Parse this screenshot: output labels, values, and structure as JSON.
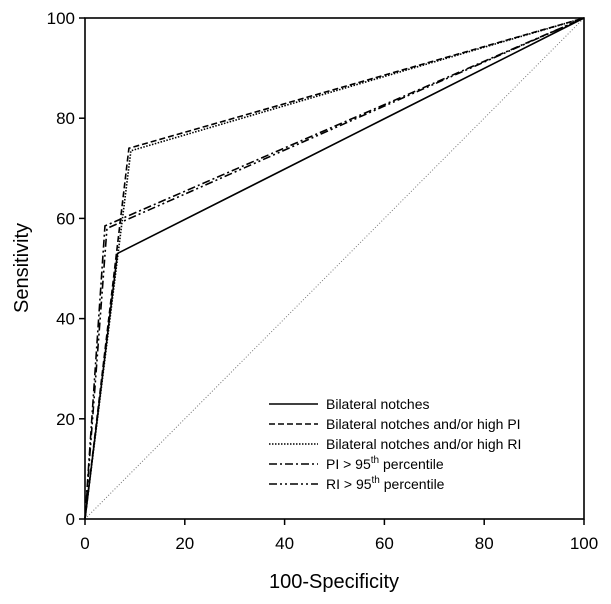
{
  "chart_data": {
    "type": "line",
    "title": "",
    "xlabel": "100-Specificity",
    "ylabel": "Sensitivity",
    "xlim": [
      0,
      100
    ],
    "ylim": [
      0,
      100
    ],
    "x_ticks": [
      "0",
      "20",
      "40",
      "60",
      "80",
      "100"
    ],
    "y_ticks": [
      "0",
      "20",
      "40",
      "60",
      "80",
      "100"
    ],
    "grid": false,
    "legend_position": "bottom-right",
    "reference_line": {
      "x": [
        0,
        100
      ],
      "y": [
        0,
        100
      ],
      "style": "dotted"
    },
    "series": [
      {
        "name": "Bilateral notches",
        "style": "solid",
        "x": [
          0,
          6.5,
          100
        ],
        "y": [
          0,
          53,
          100
        ]
      },
      {
        "name": "Bilateral notches and/or high PI",
        "name_parts": [
          "Bilateral notches and/or high PI"
        ],
        "style": "dashed",
        "x": [
          0,
          8.8,
          100
        ],
        "y": [
          0,
          74,
          100
        ]
      },
      {
        "name": "Bilateral notches and/or high RI",
        "name_parts": [
          "Bilateral notches and/or high RI"
        ],
        "style": "dotted",
        "x": [
          0,
          9.2,
          100
        ],
        "y": [
          0,
          73.5,
          100
        ]
      },
      {
        "name": "PI > 95th percentile",
        "name_parts": [
          "PI > 95",
          "th",
          " percentile"
        ],
        "style": "dashdot",
        "x": [
          0,
          4.0,
          100
        ],
        "y": [
          0,
          58.5,
          100
        ]
      },
      {
        "name": "RI > 95th percentile",
        "name_parts": [
          "RI > 95",
          "th",
          " percentile"
        ],
        "style": "dashdotdot",
        "x": [
          0,
          4.4,
          100
        ],
        "y": [
          0,
          58,
          100
        ]
      }
    ]
  }
}
